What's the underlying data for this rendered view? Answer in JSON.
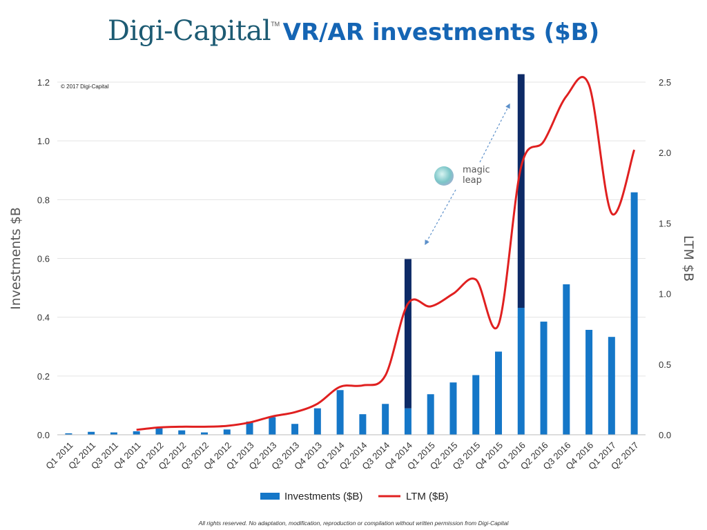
{
  "title": {
    "brand": "Digi-Capital",
    "trademark": "TM",
    "main": "VR/AR investments ($B)"
  },
  "copyright": "© 2017 Digi-Capital",
  "footer": "All rights reserved. No adaptation, modification, reproduction or compilation without written permission from Digi-Capital",
  "annotation": {
    "line1": "magic",
    "line2": "leap"
  },
  "colors": {
    "bar": "#1577c8",
    "bar_highlight": "#0d2a66",
    "line": "#e02020",
    "grid": "#e3e3e3",
    "axis_text": "#333333",
    "title_brand": "#1d5b73",
    "title_main": "#1565b4"
  },
  "chart_data": {
    "type": "bar",
    "title": "VR/AR investments ($B)",
    "xlabel": "",
    "ylabel": "Investments $B",
    "y2label": "LTM $B",
    "ylim": [
      0,
      1.2
    ],
    "y2lim": [
      0,
      2.5
    ],
    "yticks": [
      "0.0",
      "0.2",
      "0.4",
      "0.6",
      "0.8",
      "1.0",
      "1.2"
    ],
    "y2ticks": [
      "0.0",
      "0.5",
      "1.0",
      "1.5",
      "2.0",
      "2.5"
    ],
    "grid": true,
    "legend": [
      "Investments ($B)",
      "LTM ($B)"
    ],
    "legend_position": "bottom",
    "categories": [
      "Q1 2011",
      "Q2 2011",
      "Q3 2011",
      "Q4 2011",
      "Q1 2012",
      "Q2 2012",
      "Q3 2012",
      "Q4 2012",
      "Q1 2013",
      "Q2 2013",
      "Q3 2013",
      "Q4 2013",
      "Q1 2014",
      "Q2 2014",
      "Q3 2014",
      "Q4 2014",
      "Q1 2015",
      "Q2 2015",
      "Q3 2015",
      "Q4 2015",
      "Q1 2016",
      "Q2 2016",
      "Q3 2016",
      "Q4 2016",
      "Q1 2017",
      "Q2 2017"
    ],
    "series": [
      {
        "name": "Investments ($B)",
        "type": "bar",
        "axis": "left",
        "values": [
          0.005,
          0.01,
          0.008,
          0.012,
          0.022,
          0.015,
          0.008,
          0.018,
          0.045,
          0.06,
          0.037,
          0.09,
          0.152,
          0.07,
          0.105,
          0.09,
          0.138,
          0.178,
          0.203,
          0.283,
          0.432,
          0.385,
          0.512,
          0.357,
          0.333,
          0.825
        ]
      },
      {
        "name": "Magic Leap",
        "type": "bar-stack",
        "axis": "left",
        "values": [
          0,
          0,
          0,
          0,
          0,
          0,
          0,
          0,
          0,
          0,
          0,
          0,
          0,
          0,
          0,
          0.508,
          0,
          0,
          0,
          0,
          0.795,
          0,
          0,
          0,
          0,
          0
        ]
      },
      {
        "name": "LTM ($B)",
        "type": "line",
        "axis": "right",
        "values": [
          null,
          null,
          null,
          0.035,
          0.052,
          0.057,
          0.057,
          0.063,
          0.087,
          0.13,
          0.16,
          0.22,
          0.34,
          0.35,
          0.42,
          0.93,
          0.91,
          1.0,
          1.1,
          0.78,
          1.9,
          2.08,
          2.4,
          2.48,
          1.57,
          2.02
        ]
      }
    ]
  }
}
